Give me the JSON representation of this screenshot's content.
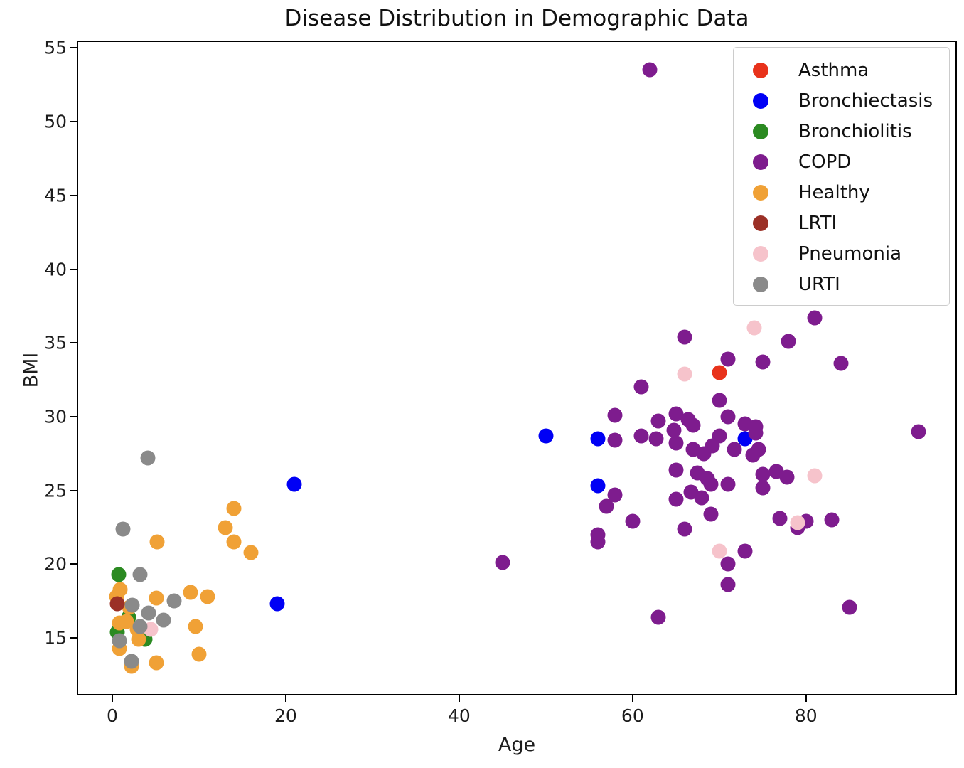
{
  "figure": {
    "title": "Disease Distribution in Demographic Data",
    "xlabel": "Age",
    "ylabel": "BMI"
  },
  "chart_data": {
    "type": "scatter",
    "title": "Disease Distribution in Demographic Data",
    "xlabel": "Age",
    "ylabel": "BMI",
    "xlim": [
      -4.1,
      97.4
    ],
    "ylim": [
      11.1,
      55.5
    ],
    "x_ticks": [
      0,
      20,
      40,
      60,
      80
    ],
    "y_ticks": [
      15,
      20,
      25,
      30,
      35,
      40,
      45,
      50,
      55
    ],
    "grid": false,
    "legend_position": "upper right",
    "marker_size_px": 21,
    "legend_marker_size_px": 22,
    "series": [
      {
        "name": "Asthma",
        "color": "#e8321b",
        "points": [
          [
            70,
            33.0
          ]
        ]
      },
      {
        "name": "Bronchiectasis",
        "color": "#0000f5",
        "points": [
          [
            21,
            25.4
          ],
          [
            19,
            17.3
          ],
          [
            50,
            28.7
          ],
          [
            56,
            28.5
          ],
          [
            56,
            25.3
          ],
          [
            73,
            28.5
          ]
        ]
      },
      {
        "name": "Bronchiolitis",
        "color": "#2b8a21",
        "points": [
          [
            0.7,
            19.3
          ],
          [
            1.9,
            16.4
          ],
          [
            0.6,
            15.4
          ],
          [
            3.8,
            14.9
          ]
        ]
      },
      {
        "name": "COPD",
        "color": "#7e1c8e",
        "points": [
          [
            62,
            53.5
          ],
          [
            81,
            36.7
          ],
          [
            78,
            35.1
          ],
          [
            66,
            35.4
          ],
          [
            71,
            33.9
          ],
          [
            75,
            33.7
          ],
          [
            84,
            33.6
          ],
          [
            61,
            32.0
          ],
          [
            70,
            31.1
          ],
          [
            58,
            30.1
          ],
          [
            65,
            30.2
          ],
          [
            66.4,
            29.8
          ],
          [
            71,
            30.0
          ],
          [
            63,
            29.7
          ],
          [
            67,
            29.4
          ],
          [
            64.8,
            29.1
          ],
          [
            73,
            29.5
          ],
          [
            74.2,
            29.3
          ],
          [
            93,
            29.0
          ],
          [
            61,
            28.7
          ],
          [
            62.7,
            28.5
          ],
          [
            58,
            28.4
          ],
          [
            65,
            28.2
          ],
          [
            70,
            28.7
          ],
          [
            69.2,
            28.0
          ],
          [
            74.2,
            28.9
          ],
          [
            74.5,
            27.8
          ],
          [
            73.9,
            27.4
          ],
          [
            67,
            27.8
          ],
          [
            68.2,
            27.5
          ],
          [
            71.7,
            27.8
          ],
          [
            65,
            26.4
          ],
          [
            67.5,
            26.2
          ],
          [
            68.6,
            25.8
          ],
          [
            71,
            25.4
          ],
          [
            69,
            25.4
          ],
          [
            75,
            26.1
          ],
          [
            76.6,
            26.3
          ],
          [
            77.8,
            25.9
          ],
          [
            75,
            25.2
          ],
          [
            58,
            24.7
          ],
          [
            65,
            24.4
          ],
          [
            66.7,
            24.9
          ],
          [
            68,
            24.5
          ],
          [
            57,
            23.9
          ],
          [
            69,
            23.4
          ],
          [
            60,
            22.9
          ],
          [
            66,
            22.4
          ],
          [
            56,
            22.0
          ],
          [
            56,
            21.5
          ],
          [
            77,
            23.1
          ],
          [
            79,
            22.5
          ],
          [
            80,
            22.9
          ],
          [
            83,
            23.0
          ],
          [
            73,
            20.9
          ],
          [
            71,
            20.0
          ],
          [
            71,
            18.6
          ],
          [
            45,
            20.1
          ],
          [
            63,
            16.4
          ],
          [
            85,
            17.1
          ]
        ]
      },
      {
        "name": "Healthy",
        "color": "#f0a136",
        "points": [
          [
            14,
            23.8
          ],
          [
            13,
            22.5
          ],
          [
            14,
            21.5
          ],
          [
            16,
            20.8
          ],
          [
            5.2,
            21.5
          ],
          [
            0.9,
            18.3
          ],
          [
            0.5,
            17.8
          ],
          [
            2,
            17.1
          ],
          [
            5.1,
            17.7
          ],
          [
            9,
            18.1
          ],
          [
            11,
            17.8
          ],
          [
            0.8,
            16.0
          ],
          [
            1.6,
            16.1
          ],
          [
            2.9,
            15.6
          ],
          [
            3,
            14.9
          ],
          [
            0.8,
            14.3
          ],
          [
            2.2,
            13.1
          ],
          [
            5.1,
            13.3
          ],
          [
            9.6,
            15.8
          ],
          [
            10,
            13.9
          ]
        ]
      },
      {
        "name": "LRTI",
        "color": "#9b3026",
        "points": [
          [
            0.6,
            17.3
          ]
        ]
      },
      {
        "name": "Pneumonia",
        "color": "#f6c3cb",
        "points": [
          [
            4.4,
            15.6
          ],
          [
            66,
            32.9
          ],
          [
            74,
            36.0
          ],
          [
            70,
            20.9
          ],
          [
            79,
            22.8
          ],
          [
            81,
            26.0
          ]
        ]
      },
      {
        "name": "URTI",
        "color": "#8a8a8a",
        "points": [
          [
            4.1,
            27.2
          ],
          [
            1.2,
            22.4
          ],
          [
            3.2,
            19.3
          ],
          [
            2.3,
            17.2
          ],
          [
            7.1,
            17.5
          ],
          [
            4.2,
            16.7
          ],
          [
            5.9,
            16.2
          ],
          [
            3.2,
            15.8
          ],
          [
            0.8,
            14.8
          ],
          [
            2.2,
            13.4
          ]
        ]
      }
    ]
  }
}
